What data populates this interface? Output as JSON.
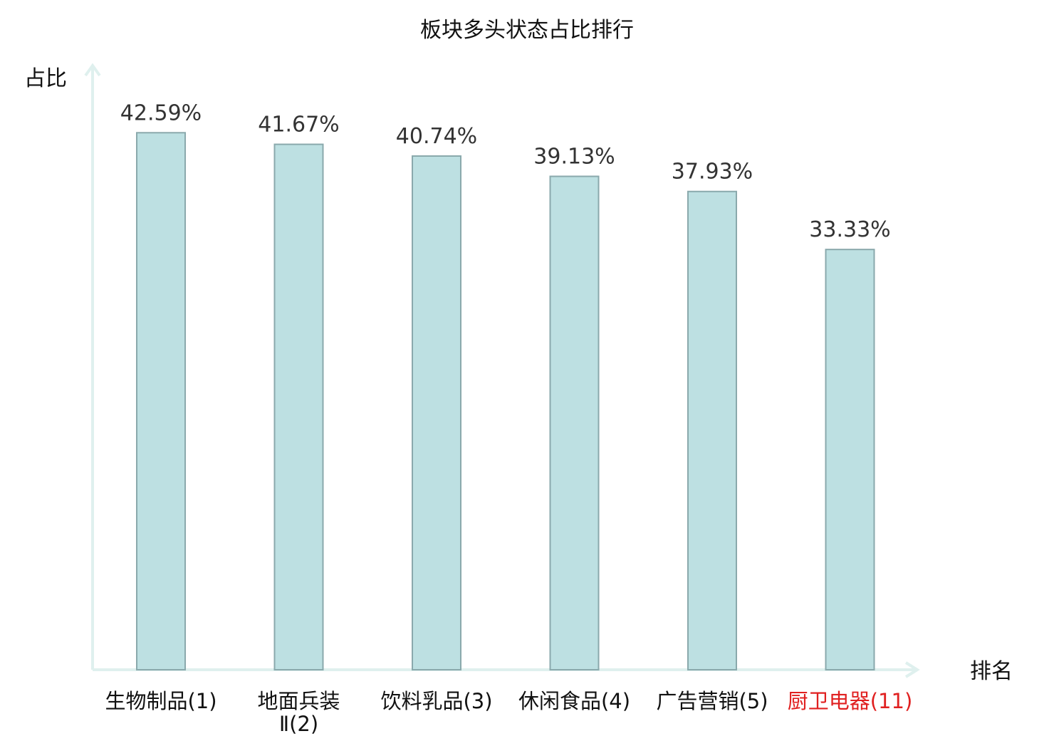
{
  "chart_data": {
    "type": "bar",
    "title": "板块多头状态占比排行",
    "ylabel": "占比",
    "xlabel": "排名",
    "categories": [
      [
        "生物制品(1)"
      ],
      [
        "地面兵装",
        "Ⅱ(2)"
      ],
      [
        "饮料乳品(3)"
      ],
      [
        "休闲食品(4)"
      ],
      [
        "广告营销(5)"
      ],
      [
        "厨卫电器(11)"
      ]
    ],
    "values": [
      42.59,
      41.67,
      40.74,
      39.13,
      37.93,
      33.33
    ],
    "value_labels": [
      "42.59%",
      "41.67%",
      "40.74%",
      "39.13%",
      "37.93%",
      "33.33%"
    ],
    "highlight_index": 5,
    "ylim": [
      0,
      46.9
    ],
    "grid": false,
    "legend": "none",
    "colors": {
      "bar_fill": "#bde0e2",
      "bar_stroke": "#8aa9ac",
      "axis": "#dff0ee",
      "text": "#333333",
      "highlight_text": "#e02020"
    }
  }
}
